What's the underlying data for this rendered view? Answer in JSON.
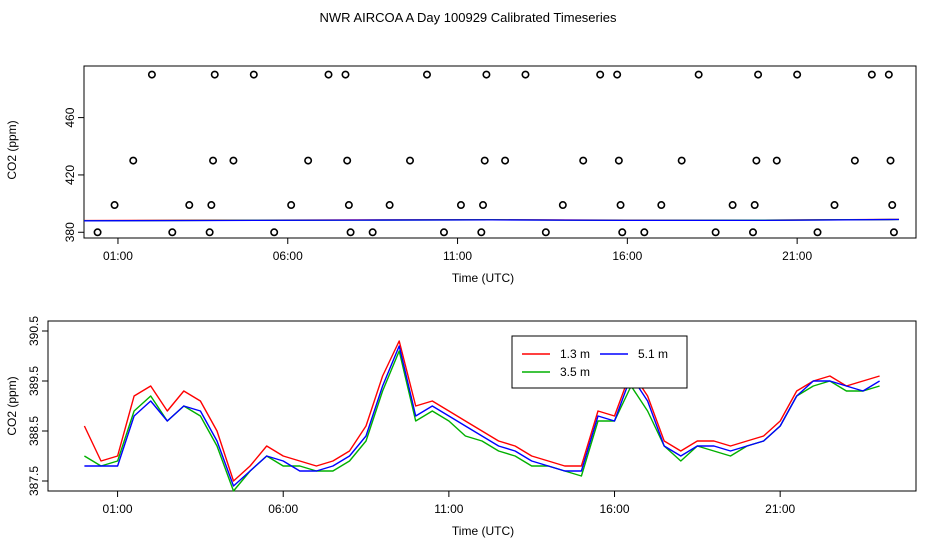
{
  "title": "NWR AIRCOA A  Day 100929  Calibrated Timeseries",
  "chart_data": [
    {
      "type": "line",
      "panel": "top",
      "xlabel": "Time (UTC)",
      "ylabel": "CO2 (ppm)",
      "xlim": [
        0,
        24.5
      ],
      "ylim": [
        376,
        496
      ],
      "x_ticks": [
        {
          "value": 1,
          "label": "01:00"
        },
        {
          "value": 6,
          "label": "06:00"
        },
        {
          "value": 11,
          "label": "11:00"
        },
        {
          "value": 16,
          "label": "16:00"
        },
        {
          "value": 21,
          "label": "21:00"
        }
      ],
      "y_ticks": [
        {
          "value": 380,
          "label": "380"
        },
        {
          "value": 420,
          "label": "420"
        },
        {
          "value": 460,
          "label": "460"
        }
      ],
      "series": [
        {
          "name": "1.3 m",
          "color": "#ff0000",
          "x": [
            0,
            4,
            8,
            12,
            16,
            20,
            24
          ],
          "values": [
            388.2,
            388.4,
            388.6,
            388.8,
            388.4,
            388.5,
            389.0
          ]
        },
        {
          "name": "3.5 m",
          "color": "#00b000",
          "x": [
            0,
            4,
            8,
            12,
            16,
            20,
            24
          ],
          "values": [
            388.0,
            388.3,
            388.5,
            388.7,
            388.3,
            388.4,
            388.9
          ]
        },
        {
          "name": "5.1 m",
          "color": "#0000ff",
          "x": [
            0,
            4,
            8,
            12,
            16,
            20,
            24
          ],
          "values": [
            388.0,
            388.2,
            388.5,
            388.6,
            388.3,
            388.3,
            388.9
          ]
        }
      ],
      "scatter_points": [
        {
          "x": 0.4,
          "y": 380
        },
        {
          "x": 0.9,
          "y": 399
        },
        {
          "x": 1.45,
          "y": 430
        },
        {
          "x": 2.0,
          "y": 490
        },
        {
          "x": 2.6,
          "y": 380
        },
        {
          "x": 3.1,
          "y": 399
        },
        {
          "x": 3.7,
          "y": 380
        },
        {
          "x": 3.75,
          "y": 399
        },
        {
          "x": 3.8,
          "y": 430
        },
        {
          "x": 3.85,
          "y": 490
        },
        {
          "x": 4.4,
          "y": 430
        },
        {
          "x": 5.0,
          "y": 490
        },
        {
          "x": 5.6,
          "y": 380
        },
        {
          "x": 6.1,
          "y": 399
        },
        {
          "x": 6.6,
          "y": 430
        },
        {
          "x": 7.2,
          "y": 490
        },
        {
          "x": 7.7,
          "y": 490
        },
        {
          "x": 7.75,
          "y": 430
        },
        {
          "x": 7.8,
          "y": 399
        },
        {
          "x": 7.85,
          "y": 380
        },
        {
          "x": 8.5,
          "y": 380
        },
        {
          "x": 9.0,
          "y": 399
        },
        {
          "x": 9.6,
          "y": 430
        },
        {
          "x": 10.1,
          "y": 490
        },
        {
          "x": 10.6,
          "y": 380
        },
        {
          "x": 11.1,
          "y": 399
        },
        {
          "x": 11.7,
          "y": 380
        },
        {
          "x": 11.75,
          "y": 399
        },
        {
          "x": 11.8,
          "y": 430
        },
        {
          "x": 11.85,
          "y": 490
        },
        {
          "x": 12.4,
          "y": 430
        },
        {
          "x": 13.0,
          "y": 490
        },
        {
          "x": 13.6,
          "y": 380
        },
        {
          "x": 14.1,
          "y": 399
        },
        {
          "x": 14.7,
          "y": 430
        },
        {
          "x": 15.2,
          "y": 490
        },
        {
          "x": 15.7,
          "y": 490
        },
        {
          "x": 15.75,
          "y": 430
        },
        {
          "x": 15.8,
          "y": 399
        },
        {
          "x": 15.85,
          "y": 380
        },
        {
          "x": 16.5,
          "y": 380
        },
        {
          "x": 17.0,
          "y": 399
        },
        {
          "x": 17.6,
          "y": 430
        },
        {
          "x": 18.1,
          "y": 490
        },
        {
          "x": 18.6,
          "y": 380
        },
        {
          "x": 19.1,
          "y": 399
        },
        {
          "x": 19.7,
          "y": 380
        },
        {
          "x": 19.75,
          "y": 399
        },
        {
          "x": 19.8,
          "y": 430
        },
        {
          "x": 19.85,
          "y": 490
        },
        {
          "x": 20.4,
          "y": 430
        },
        {
          "x": 21.0,
          "y": 490
        },
        {
          "x": 21.6,
          "y": 380
        },
        {
          "x": 22.1,
          "y": 399
        },
        {
          "x": 22.7,
          "y": 430
        },
        {
          "x": 23.2,
          "y": 490
        },
        {
          "x": 23.7,
          "y": 490
        },
        {
          "x": 23.75,
          "y": 430
        },
        {
          "x": 23.8,
          "y": 399
        },
        {
          "x": 23.85,
          "y": 380
        }
      ]
    },
    {
      "type": "line",
      "panel": "bottom",
      "xlabel": "Time (UTC)",
      "ylabel": "CO2 (ppm)",
      "xlim": [
        -1.1,
        25.1
      ],
      "ylim": [
        387.3,
        390.7
      ],
      "x_ticks": [
        {
          "value": 1,
          "label": "01:00"
        },
        {
          "value": 6,
          "label": "06:00"
        },
        {
          "value": 11,
          "label": "11:00"
        },
        {
          "value": 16,
          "label": "16:00"
        },
        {
          "value": 21,
          "label": "21:00"
        }
      ],
      "y_ticks": [
        {
          "value": 387.5,
          "label": "387.5"
        },
        {
          "value": 388.5,
          "label": "388.5"
        },
        {
          "value": 389.5,
          "label": "389.5"
        },
        {
          "value": 390.5,
          "label": "390.5"
        }
      ],
      "legend": {
        "position": "top-center",
        "columns": 2
      },
      "x": [
        0,
        0.5,
        1,
        1.5,
        2,
        2.5,
        3,
        3.5,
        4,
        4.5,
        5,
        5.5,
        6,
        6.5,
        7,
        7.5,
        8,
        8.5,
        9,
        9.5,
        10,
        10.5,
        11,
        11.5,
        12,
        12.5,
        13,
        13.5,
        14,
        14.5,
        15,
        15.5,
        16,
        16.5,
        17,
        17.5,
        18,
        18.5,
        19,
        19.5,
        20,
        20.5,
        21,
        21.5,
        22,
        22.5,
        23,
        23.5,
        24
      ],
      "series": [
        {
          "name": "1.3 m",
          "color": "#ff0000",
          "values": [
            388.6,
            387.9,
            388.0,
            389.2,
            389.4,
            388.9,
            389.3,
            389.1,
            388.5,
            387.5,
            387.8,
            388.2,
            388.0,
            387.9,
            387.8,
            387.9,
            388.1,
            388.6,
            389.6,
            390.3,
            389.0,
            389.1,
            388.9,
            388.7,
            388.5,
            388.3,
            388.2,
            388.0,
            387.9,
            387.8,
            387.8,
            388.9,
            388.8,
            389.7,
            389.2,
            388.3,
            388.1,
            388.3,
            388.3,
            388.2,
            388.3,
            388.4,
            388.7,
            389.3,
            389.5,
            389.6,
            389.4,
            389.5,
            389.6
          ]
        },
        {
          "name": "3.5 m",
          "color": "#00b000",
          "values": [
            388.0,
            387.8,
            387.9,
            388.9,
            389.2,
            388.7,
            389.0,
            388.8,
            388.2,
            387.3,
            387.7,
            388.0,
            387.8,
            387.8,
            387.7,
            387.7,
            387.9,
            388.3,
            389.3,
            390.1,
            388.7,
            388.9,
            388.7,
            388.4,
            388.3,
            388.1,
            388.0,
            387.8,
            387.8,
            387.7,
            387.6,
            388.7,
            388.7,
            389.4,
            388.9,
            388.2,
            387.9,
            388.2,
            388.1,
            388.0,
            388.2,
            388.3,
            388.6,
            389.2,
            389.4,
            389.5,
            389.3,
            389.3,
            389.4
          ]
        },
        {
          "name": "5.1 m",
          "color": "#0000ff",
          "values": [
            387.8,
            387.8,
            387.8,
            388.8,
            389.1,
            388.7,
            389.0,
            388.9,
            388.3,
            387.4,
            387.7,
            388.0,
            387.9,
            387.7,
            387.7,
            387.8,
            388.0,
            388.4,
            389.4,
            390.2,
            388.8,
            389.0,
            388.8,
            388.6,
            388.4,
            388.2,
            388.1,
            387.9,
            387.8,
            387.7,
            387.7,
            388.8,
            388.7,
            389.6,
            389.1,
            388.2,
            388.0,
            388.2,
            388.2,
            388.1,
            388.2,
            388.3,
            388.6,
            389.2,
            389.5,
            389.5,
            389.4,
            389.3,
            389.5
          ]
        }
      ]
    }
  ]
}
